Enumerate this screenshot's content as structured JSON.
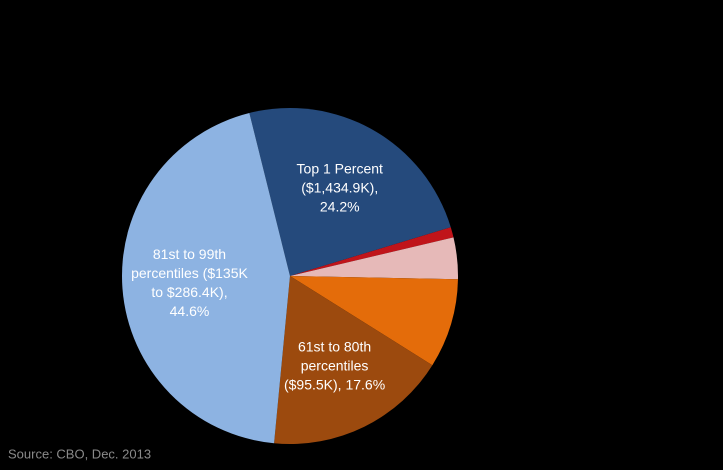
{
  "chart_data": {
    "type": "pie",
    "labels": [
      [
        "Top 1 Percent",
        "($1,434.9K),",
        "24.2%"
      ],
      null,
      null,
      null,
      [
        "61st to 80th",
        "percentiles",
        "($95.5K), 17.6%"
      ],
      [
        "81st to 99th",
        "percentiles ($135K",
        "to $286.4K),",
        "44.6%"
      ]
    ],
    "values": [
      24.2,
      1,
      4,
      8.6,
      17.6,
      44.6
    ],
    "colors": [
      "#254a7c",
      "#c0141a",
      "#e6b9b8",
      "#e46c0a",
      "#9c4a0e",
      "#8db3e2"
    ],
    "source": "Source: CBO, Dec. 2013"
  }
}
